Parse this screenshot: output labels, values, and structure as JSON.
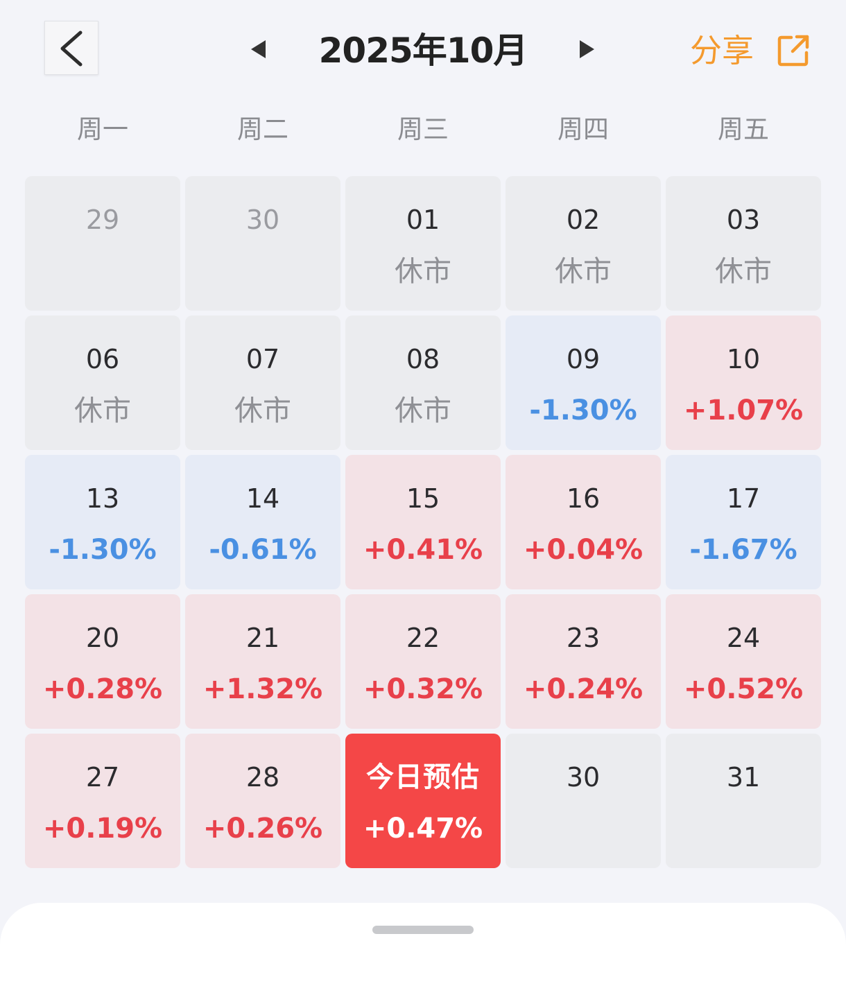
{
  "header": {
    "title": "2025年10月",
    "share_label": "分享"
  },
  "weekdays": [
    "周一",
    "周二",
    "周三",
    "周四",
    "周五"
  ],
  "colors": {
    "up": "#e8404a",
    "down": "#4a90e2",
    "share": "#f49a2e",
    "today_bg": "#f44747"
  },
  "days": [
    {
      "date": "29",
      "value": "",
      "state": "other"
    },
    {
      "date": "30",
      "value": "",
      "state": "other"
    },
    {
      "date": "01",
      "value": "休市",
      "state": "closed"
    },
    {
      "date": "02",
      "value": "休市",
      "state": "closed"
    },
    {
      "date": "03",
      "value": "休市",
      "state": "closed"
    },
    {
      "date": "06",
      "value": "休市",
      "state": "closed"
    },
    {
      "date": "07",
      "value": "休市",
      "state": "closed"
    },
    {
      "date": "08",
      "value": "休市",
      "state": "closed"
    },
    {
      "date": "09",
      "value": "-1.30%",
      "state": "down"
    },
    {
      "date": "10",
      "value": "+1.07%",
      "state": "up"
    },
    {
      "date": "13",
      "value": "-1.30%",
      "state": "down"
    },
    {
      "date": "14",
      "value": "-0.61%",
      "state": "down"
    },
    {
      "date": "15",
      "value": "+0.41%",
      "state": "up"
    },
    {
      "date": "16",
      "value": "+0.04%",
      "state": "up"
    },
    {
      "date": "17",
      "value": "-1.67%",
      "state": "down"
    },
    {
      "date": "20",
      "value": "+0.28%",
      "state": "up"
    },
    {
      "date": "21",
      "value": "+1.32%",
      "state": "up"
    },
    {
      "date": "22",
      "value": "+0.32%",
      "state": "up"
    },
    {
      "date": "23",
      "value": "+0.24%",
      "state": "up"
    },
    {
      "date": "24",
      "value": "+0.52%",
      "state": "up"
    },
    {
      "date": "27",
      "value": "+0.19%",
      "state": "up"
    },
    {
      "date": "28",
      "value": "+0.26%",
      "state": "up"
    },
    {
      "date": "今日预估",
      "value": "+0.47%",
      "state": "today"
    },
    {
      "date": "30",
      "value": "",
      "state": "future"
    },
    {
      "date": "31",
      "value": "",
      "state": "future"
    }
  ]
}
